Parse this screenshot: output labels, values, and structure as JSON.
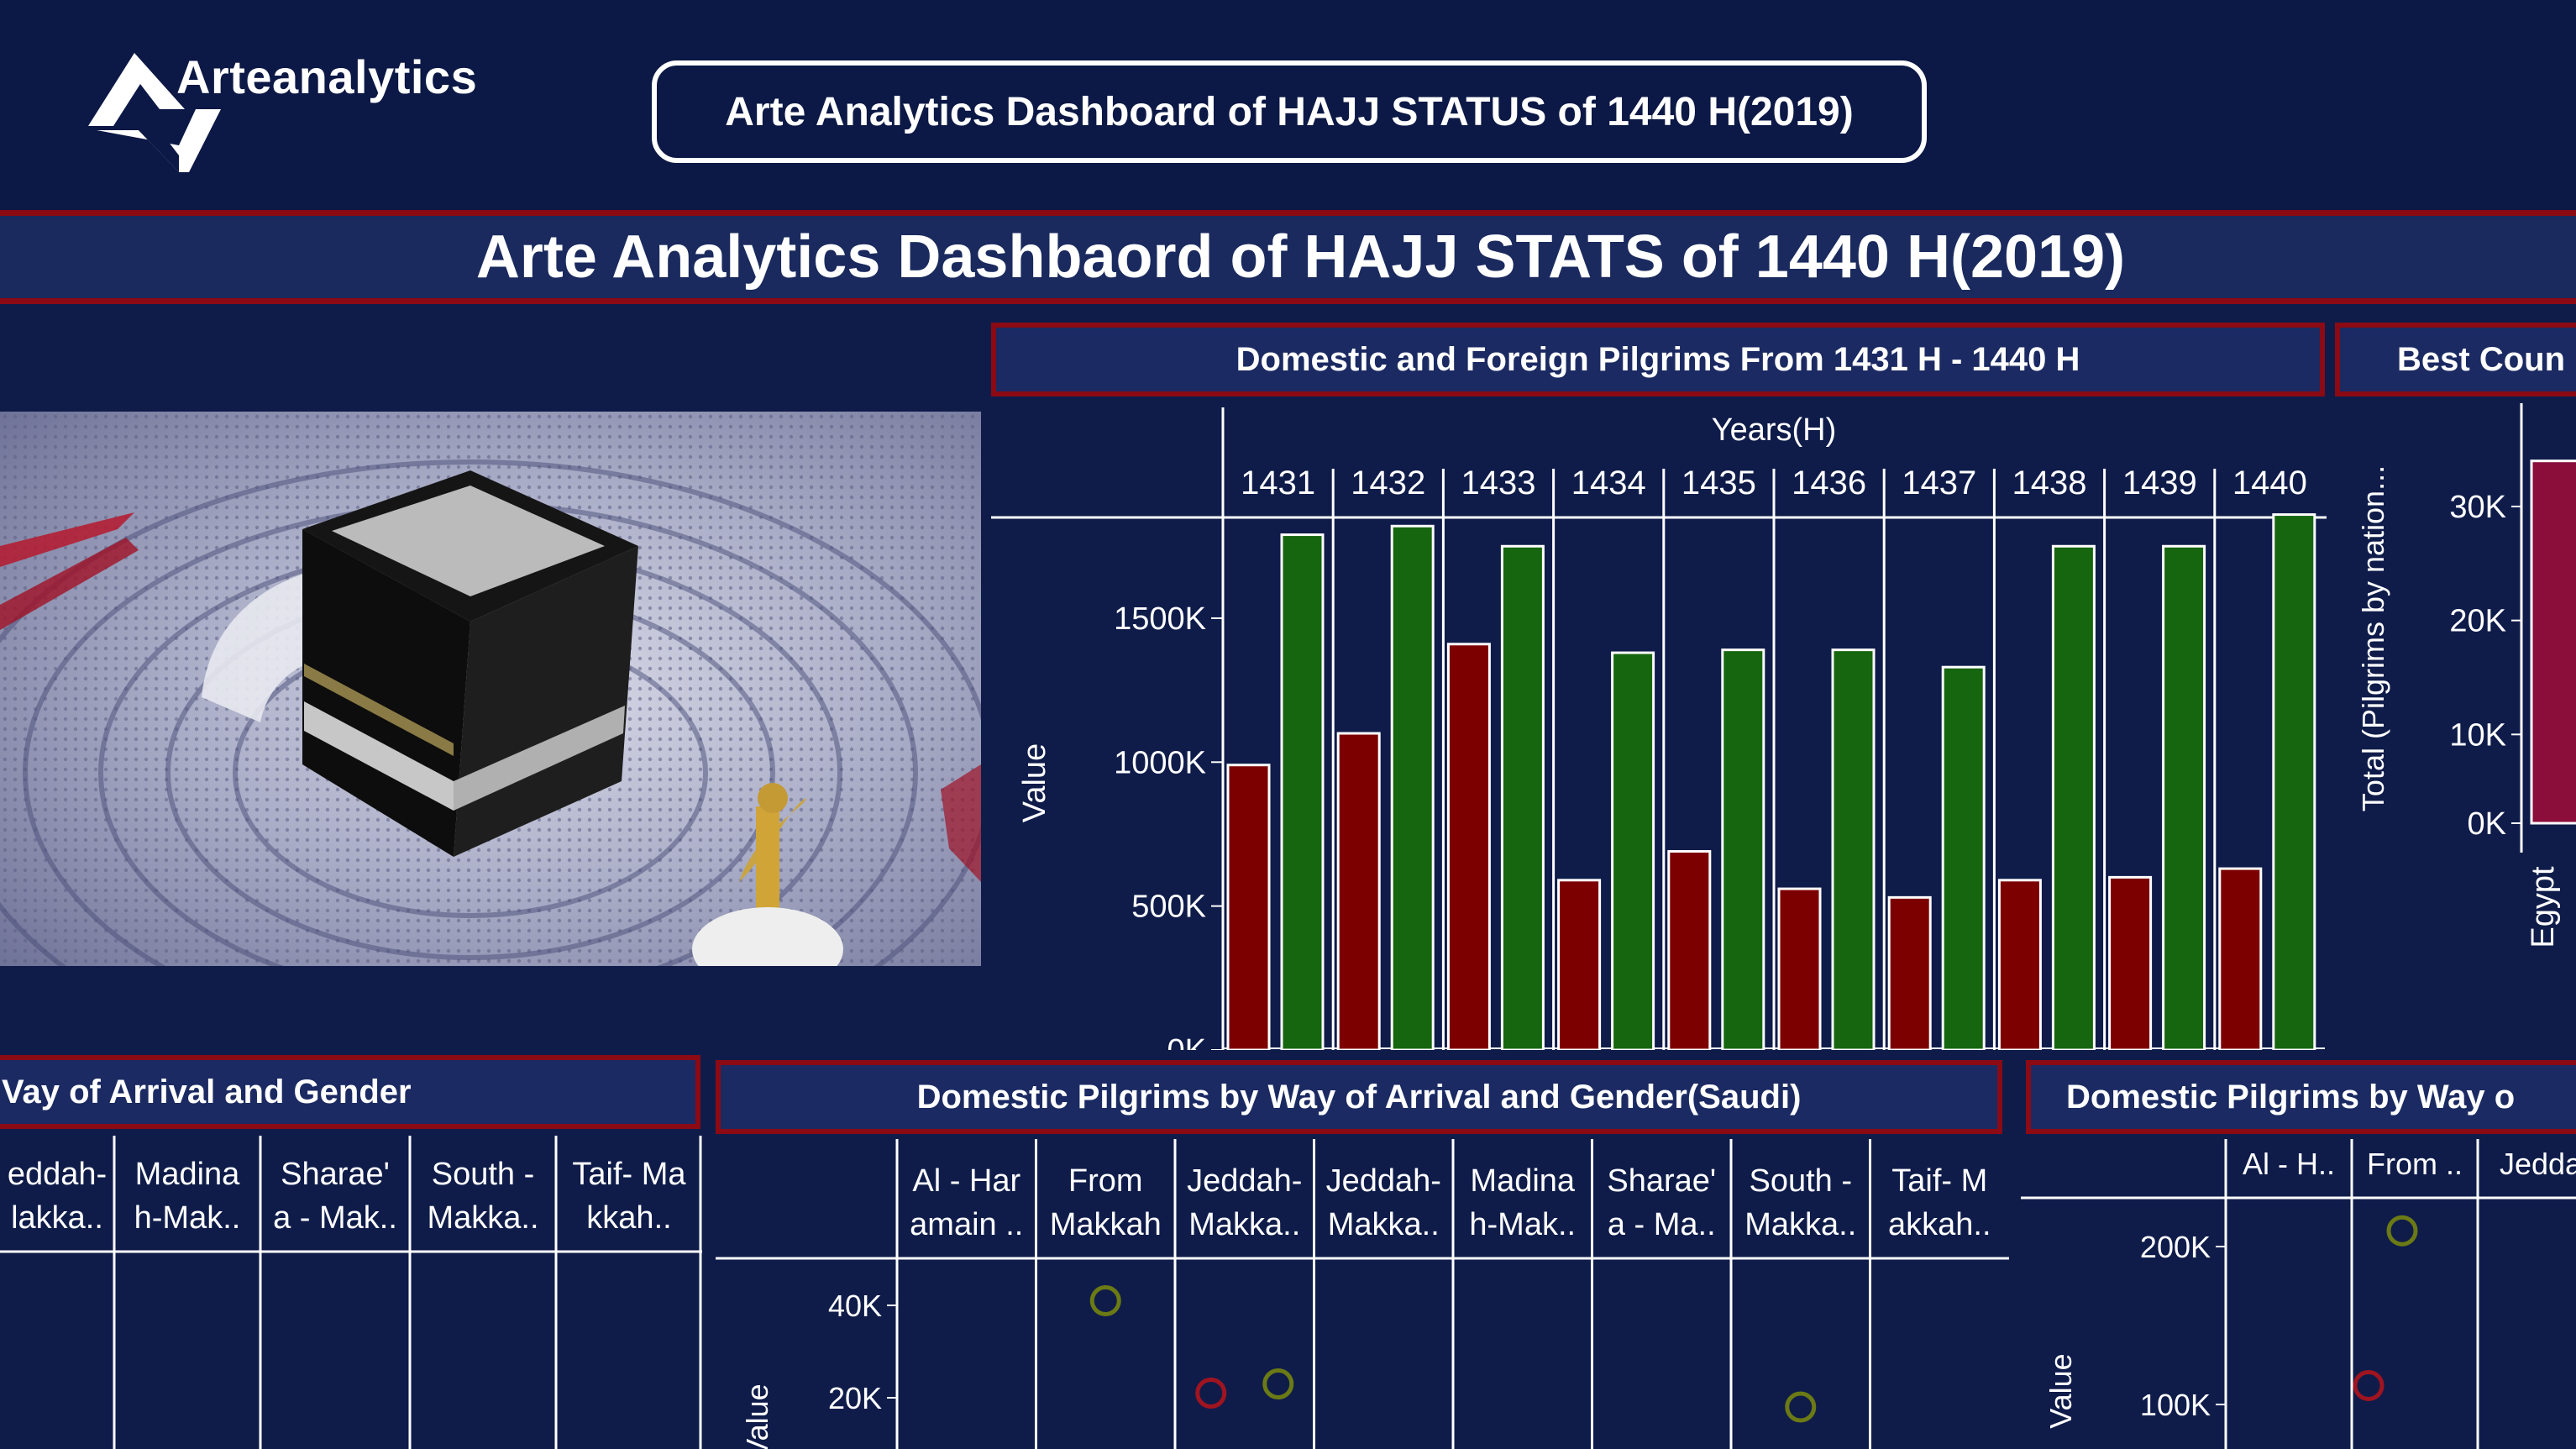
{
  "header": {
    "logo_text": "Arteanalytics",
    "title_pill": "Arte Analytics Dashboard of HAJJ STATUS of 1440 H(2019)"
  },
  "banner": {
    "title": "Arte Analytics Dashbaord of HAJJ STATS of  1440 H(2019)"
  },
  "sections": {
    "main_chart_title": "Domestic and Foreign Pilgrims From 1431 H - 1440 H",
    "best_countries_title": "Best Coun",
    "bottom_left_title": "Vay of Arrival and Gender",
    "bottom_mid_title": "Domestic Pilgrims by Way of Arrival and Gender(Saudi)",
    "bottom_right_title": "Domestic Pilgrims by Way o"
  },
  "colors": {
    "domestic": "#7d0000",
    "foreign": "#16650f",
    "accent": "#8b0a14",
    "background": "#0f1c4a"
  },
  "chart_data": [
    {
      "type": "bar",
      "title": "Domestic and Foreign Pilgrims From 1431 H - 1440 H",
      "xlabel": "Years(H)",
      "ylabel": "Value",
      "categories": [
        "1431",
        "1432",
        "1433",
        "1434",
        "1435",
        "1436",
        "1437",
        "1438",
        "1439",
        "1440"
      ],
      "yticks": [
        "0K",
        "500K",
        "1000K",
        "1500K"
      ],
      "ylim": [
        0,
        1850000
      ],
      "series": [
        {
          "color": "#7d0000",
          "values": [
            990000,
            1100000,
            1410000,
            590000,
            690000,
            560000,
            530000,
            590000,
            600000,
            630000
          ]
        },
        {
          "color": "#16650f",
          "values": [
            1790000,
            1820000,
            1750000,
            1380000,
            1390000,
            1390000,
            1330000,
            1750000,
            1750000,
            1860000
          ]
        }
      ]
    },
    {
      "type": "bar",
      "title": "Best Coun",
      "ylabel": "Total (Pilgrims by nation...",
      "categories": [
        "Egypt"
      ],
      "yticks": [
        "0K",
        "10K",
        "20K",
        "30K"
      ],
      "values": [
        34000
      ]
    },
    {
      "type": "table",
      "title": "Vay of Arrival and Gender",
      "columns": [
        "eddah-\nlakka..",
        "Madina\nh-Mak..",
        "Sharae'\na - Mak..",
        "South -\nMakka..",
        "Taif- Ma\nkkah.."
      ]
    },
    {
      "type": "scatter",
      "title": "Domestic Pilgrims by Way of Arrival and Gender(Saudi)",
      "ylabel": "Value",
      "yticks": [
        "20K",
        "40K"
      ],
      "columns": [
        "Al - Har\namain ..",
        "From\nMakkah",
        "Jeddah-\nMakka..",
        "Jeddah-\nMakka..",
        "Madina\nh-Mak..",
        "Sharae'\na - Ma..",
        "South -\nMakka..",
        "Taif- M\nakkah.."
      ],
      "points": [
        {
          "column": 1,
          "value": 41000,
          "color": "#6b7a14"
        },
        {
          "column": 2,
          "value": 21000,
          "color": "#a01420"
        },
        {
          "column": 2,
          "value": 23000,
          "color": "#6b7a14"
        },
        {
          "column": 6,
          "value": 18000,
          "color": "#6b7a14"
        }
      ]
    },
    {
      "type": "scatter",
      "title": "Domestic Pilgrims by Way o",
      "ylabel": "Value",
      "yticks": [
        "100K",
        "200K"
      ],
      "columns": [
        "Al - H..",
        "From ..",
        "Jedda"
      ],
      "points": [
        {
          "column": 1,
          "value": 210000,
          "color": "#6b7a14"
        },
        {
          "column": 1,
          "value": 112000,
          "color": "#a01420"
        }
      ]
    }
  ]
}
